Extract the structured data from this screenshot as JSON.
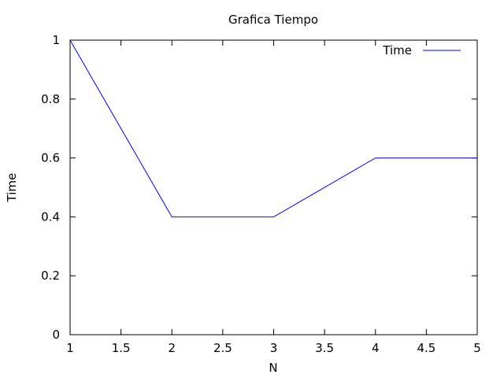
{
  "chart_data": {
    "type": "line",
    "title": "Grafica Tiempo",
    "xlabel": "N",
    "ylabel": "Time",
    "xlim": [
      1,
      5
    ],
    "ylim": [
      0,
      1
    ],
    "xticks": [
      "1",
      "1.5",
      "2",
      "2.5",
      "3",
      "3.5",
      "4",
      "4.5",
      "5"
    ],
    "yticks": [
      "0",
      "0.2",
      "0.4",
      "0.6",
      "0.8",
      "1"
    ],
    "grid": false,
    "legend_position": "top-right",
    "series": [
      {
        "name": "Time",
        "color": "#0000ff",
        "x": [
          1,
          2,
          3,
          4,
          5
        ],
        "y": [
          1,
          0.4,
          0.4,
          0.6,
          0.6
        ]
      }
    ]
  }
}
